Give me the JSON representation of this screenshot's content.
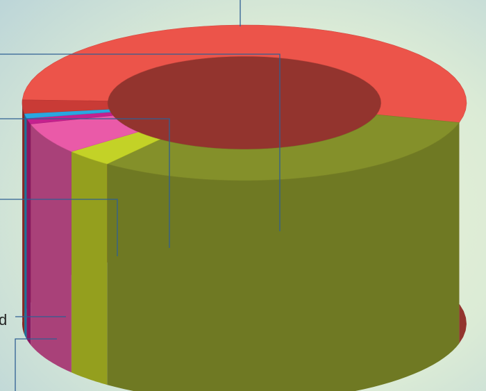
{
  "chart_data": {
    "type": "pie",
    "style": "3d-donut",
    "title": "",
    "legend": "none",
    "slices": [
      {
        "label": "",
        "value": 53.5,
        "color": "#ec544a"
      },
      {
        "label": "",
        "value": 31.5,
        "color": "#84902a"
      },
      {
        "label": "",
        "value": 3.6,
        "color": "#c3d227"
      },
      {
        "label": "",
        "value": 6.4,
        "color": "#ea5aa8"
      },
      {
        "label": "d",
        "value": 1.2,
        "color": "#c4218e"
      },
      {
        "label": "",
        "value": 1.0,
        "color": "#29a7e1"
      },
      {
        "label": "",
        "value": 2.8,
        "color": "#c93b36"
      }
    ]
  }
}
